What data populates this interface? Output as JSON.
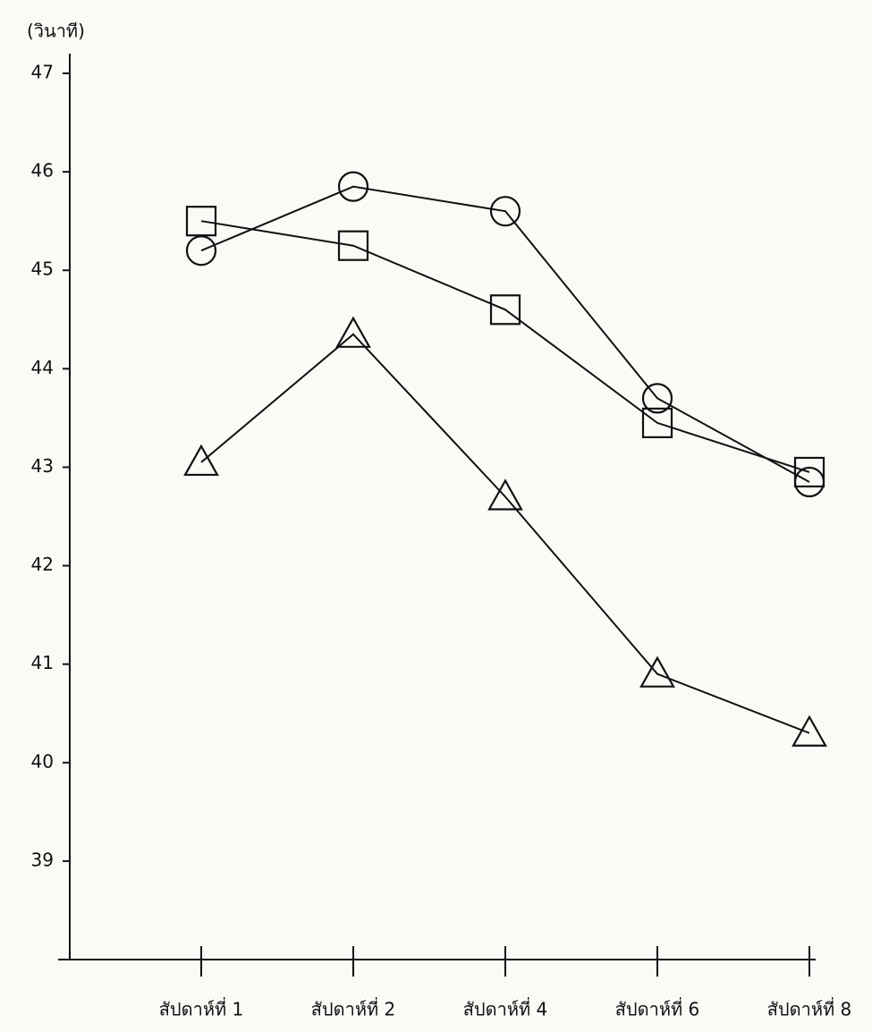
{
  "chart_data": {
    "type": "line",
    "y_label": "(วินาที)",
    "categories": [
      "สัปดาห์ที่ 1",
      "สัปดาห์ที่ 2",
      "สัปดาห์ที่ 4",
      "สัปดาห์ที่ 6",
      "สัปดาห์ที่ 8"
    ],
    "series": [
      {
        "marker": "circle",
        "color": "#111111",
        "values": [
          45.2,
          45.85,
          45.6,
          43.7,
          42.85
        ]
      },
      {
        "marker": "square",
        "color": "#111111",
        "values": [
          45.5,
          45.25,
          44.6,
          43.45,
          42.95
        ]
      },
      {
        "marker": "triangle",
        "color": "#111111",
        "values": [
          43.05,
          44.35,
          42.7,
          40.9,
          40.3
        ]
      }
    ],
    "ylim": [
      38,
      47.2
    ],
    "yticks": [
      39,
      40,
      41,
      42,
      43,
      44,
      45,
      46,
      47
    ],
    "grid": false
  }
}
